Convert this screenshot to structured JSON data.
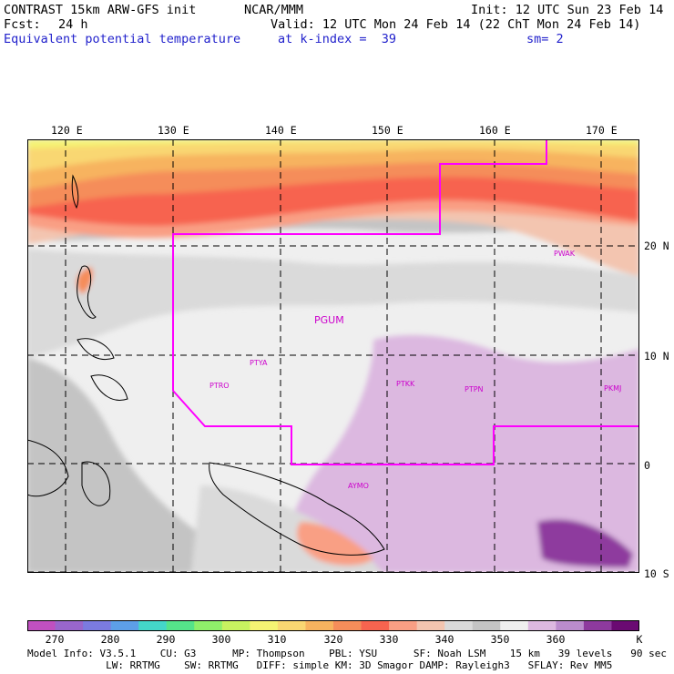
{
  "header": {
    "model_title": "CONTRAST 15km ARW-GFS init",
    "org": "NCAR/MMM",
    "init": "Init: 12 UTC Sun 23 Feb 14",
    "forecast_label": "Fcst:",
    "forecast_value": "24 h",
    "valid": "Valid: 12 UTC Mon 24 Feb 14 (22 ChT Mon 24 Feb 14)",
    "field": "Equivalent potential temperature",
    "level": "at k-index =  39",
    "smoothing": "sm= 2"
  },
  "map": {
    "lon_labels": [
      "120 E",
      "130 E",
      "140 E",
      "150 E",
      "160 E",
      "170 E"
    ],
    "lat_labels": [
      "20 N",
      "10 N",
      "0",
      "10 S"
    ],
    "stations": [
      {
        "id": "PWAK"
      },
      {
        "id": "PGUM"
      },
      {
        "id": "PTYA"
      },
      {
        "id": "PTRO"
      },
      {
        "id": "PTKK"
      },
      {
        "id": "PTPN"
      },
      {
        "id": "PKMJ"
      },
      {
        "id": "AYMO"
      }
    ]
  },
  "colorbar": {
    "labels": [
      "270",
      "280",
      "290",
      "300",
      "310",
      "320",
      "330",
      "340",
      "350",
      "360"
    ],
    "unit": "K",
    "colors": [
      "#c050c0",
      "#9966cc",
      "#7b7be0",
      "#5d9fe8",
      "#44d6c9",
      "#55e38a",
      "#8fef6a",
      "#c8f260",
      "#f5f373",
      "#f9d772",
      "#f7b35f",
      "#f58d5a",
      "#f7644f",
      "#f99f84",
      "#f3c5b0",
      "#dadada",
      "#c4c4c4",
      "#efefef",
      "#dcb8e0",
      "#bb8ccd",
      "#8e3a9e",
      "#6a0a72"
    ]
  },
  "footer": {
    "line1": "Model Info: V3.5.1    CU: G3      MP: Thompson    PBL: YSU      SF: Noah LSM    15 km   39 levels   90 sec",
    "line2": "             LW: RRTMG    SW: RRTMG   DIFF: simple KM: 3D Smagor DAMP: Rayleigh3   SFLAY: Rev MM5"
  }
}
